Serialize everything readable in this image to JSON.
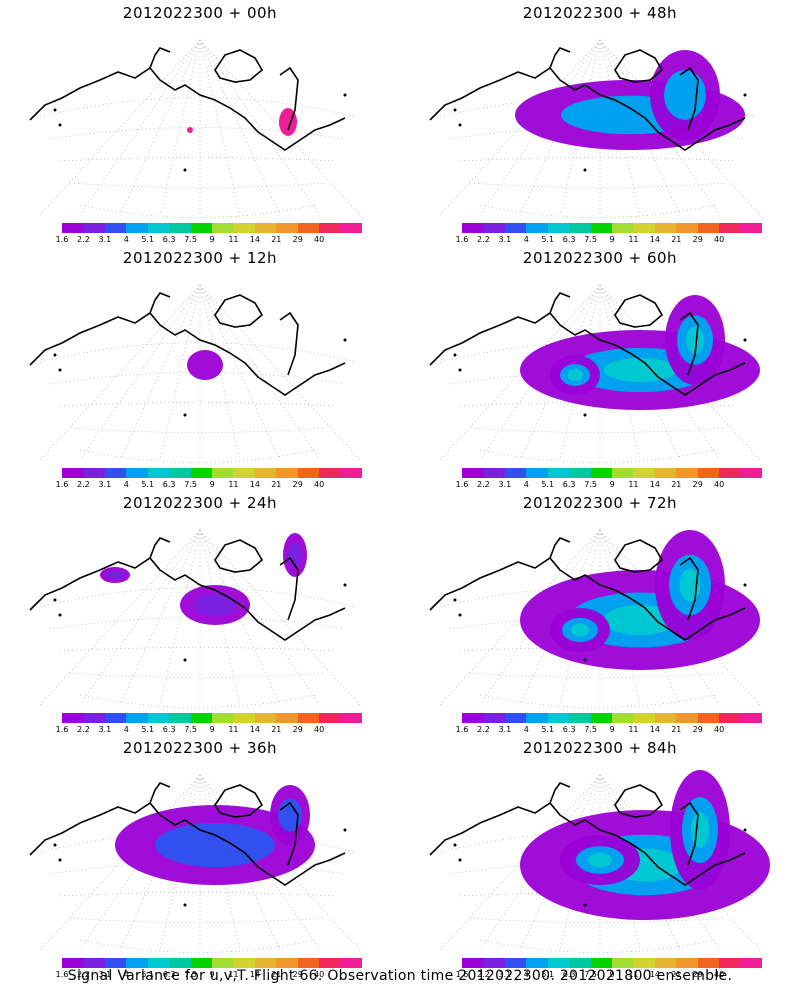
{
  "panels": [
    {
      "id": "p00",
      "title": "2012022300  +  00h",
      "level": 0
    },
    {
      "id": "p48",
      "title": "2012022300  +  48h",
      "level": 4
    },
    {
      "id": "p12",
      "title": "2012022300  +  12h",
      "level": 1
    },
    {
      "id": "p60",
      "title": "2012022300  +  60h",
      "level": 5
    },
    {
      "id": "p24",
      "title": "2012022300  +  24h",
      "level": 2
    },
    {
      "id": "p72",
      "title": "2012022300  +  72h",
      "level": 6
    },
    {
      "id": "p36",
      "title": "2012022300  +  36h",
      "level": 3
    },
    {
      "id": "p84",
      "title": "2012022300  +  84h",
      "level": 7
    }
  ],
  "colorbar": {
    "colors": [
      "#9b00d6",
      "#7a1fe0",
      "#3250f0",
      "#00a0f0",
      "#00c8d2",
      "#00c8a0",
      "#00d200",
      "#a0dc32",
      "#d2d232",
      "#e6b432",
      "#f0962d",
      "#f0641e",
      "#f0285a",
      "#f01e96"
    ],
    "labels": [
      "1.6",
      "2.2",
      "3.1",
      "4",
      "5.1",
      "6.3",
      "7.5",
      "9",
      "11",
      "14",
      "21",
      "29",
      "40"
    ]
  },
  "caption": "Signal Variance for u,v,T. Flight 66. Observation time 2012022300. 2012021800 ensemble."
}
